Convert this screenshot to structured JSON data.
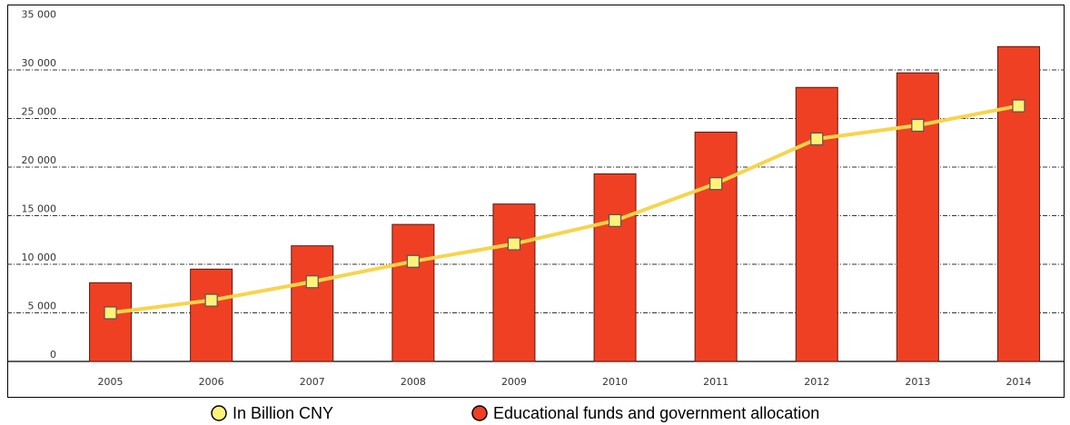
{
  "chart_data": {
    "type": "bar",
    "categories": [
      "2005",
      "2006",
      "2007",
      "2008",
      "2009",
      "2010",
      "2011",
      "2012",
      "2013",
      "2014"
    ],
    "series": [
      {
        "name": "In Billion CNY",
        "type": "line",
        "color": "#f7d44c",
        "marker_color": "#fff27a",
        "values": [
          5000,
          6300,
          8200,
          10300,
          12100,
          14500,
          18300,
          22900,
          24300,
          26300
        ]
      },
      {
        "name": "Educational funds and government allocation",
        "type": "bar",
        "color": "#ef4023",
        "values": [
          8100,
          9500,
          11900,
          14100,
          16200,
          19300,
          23600,
          28200,
          29700,
          32400
        ]
      }
    ],
    "ylim": [
      0,
      35000
    ],
    "yticks": [
      0,
      {
        "value": 5000,
        "label": "5 000"
      },
      {
        "value": 10000,
        "label": "10 000"
      },
      {
        "value": 15000,
        "label": "15 000"
      },
      {
        "value": 20000,
        "label": "20 000"
      },
      {
        "value": 25000,
        "label": "25 000"
      },
      {
        "value": 30000,
        "label": "30 000"
      },
      {
        "value": 35000,
        "label": "35 000"
      }
    ],
    "grid": true
  }
}
